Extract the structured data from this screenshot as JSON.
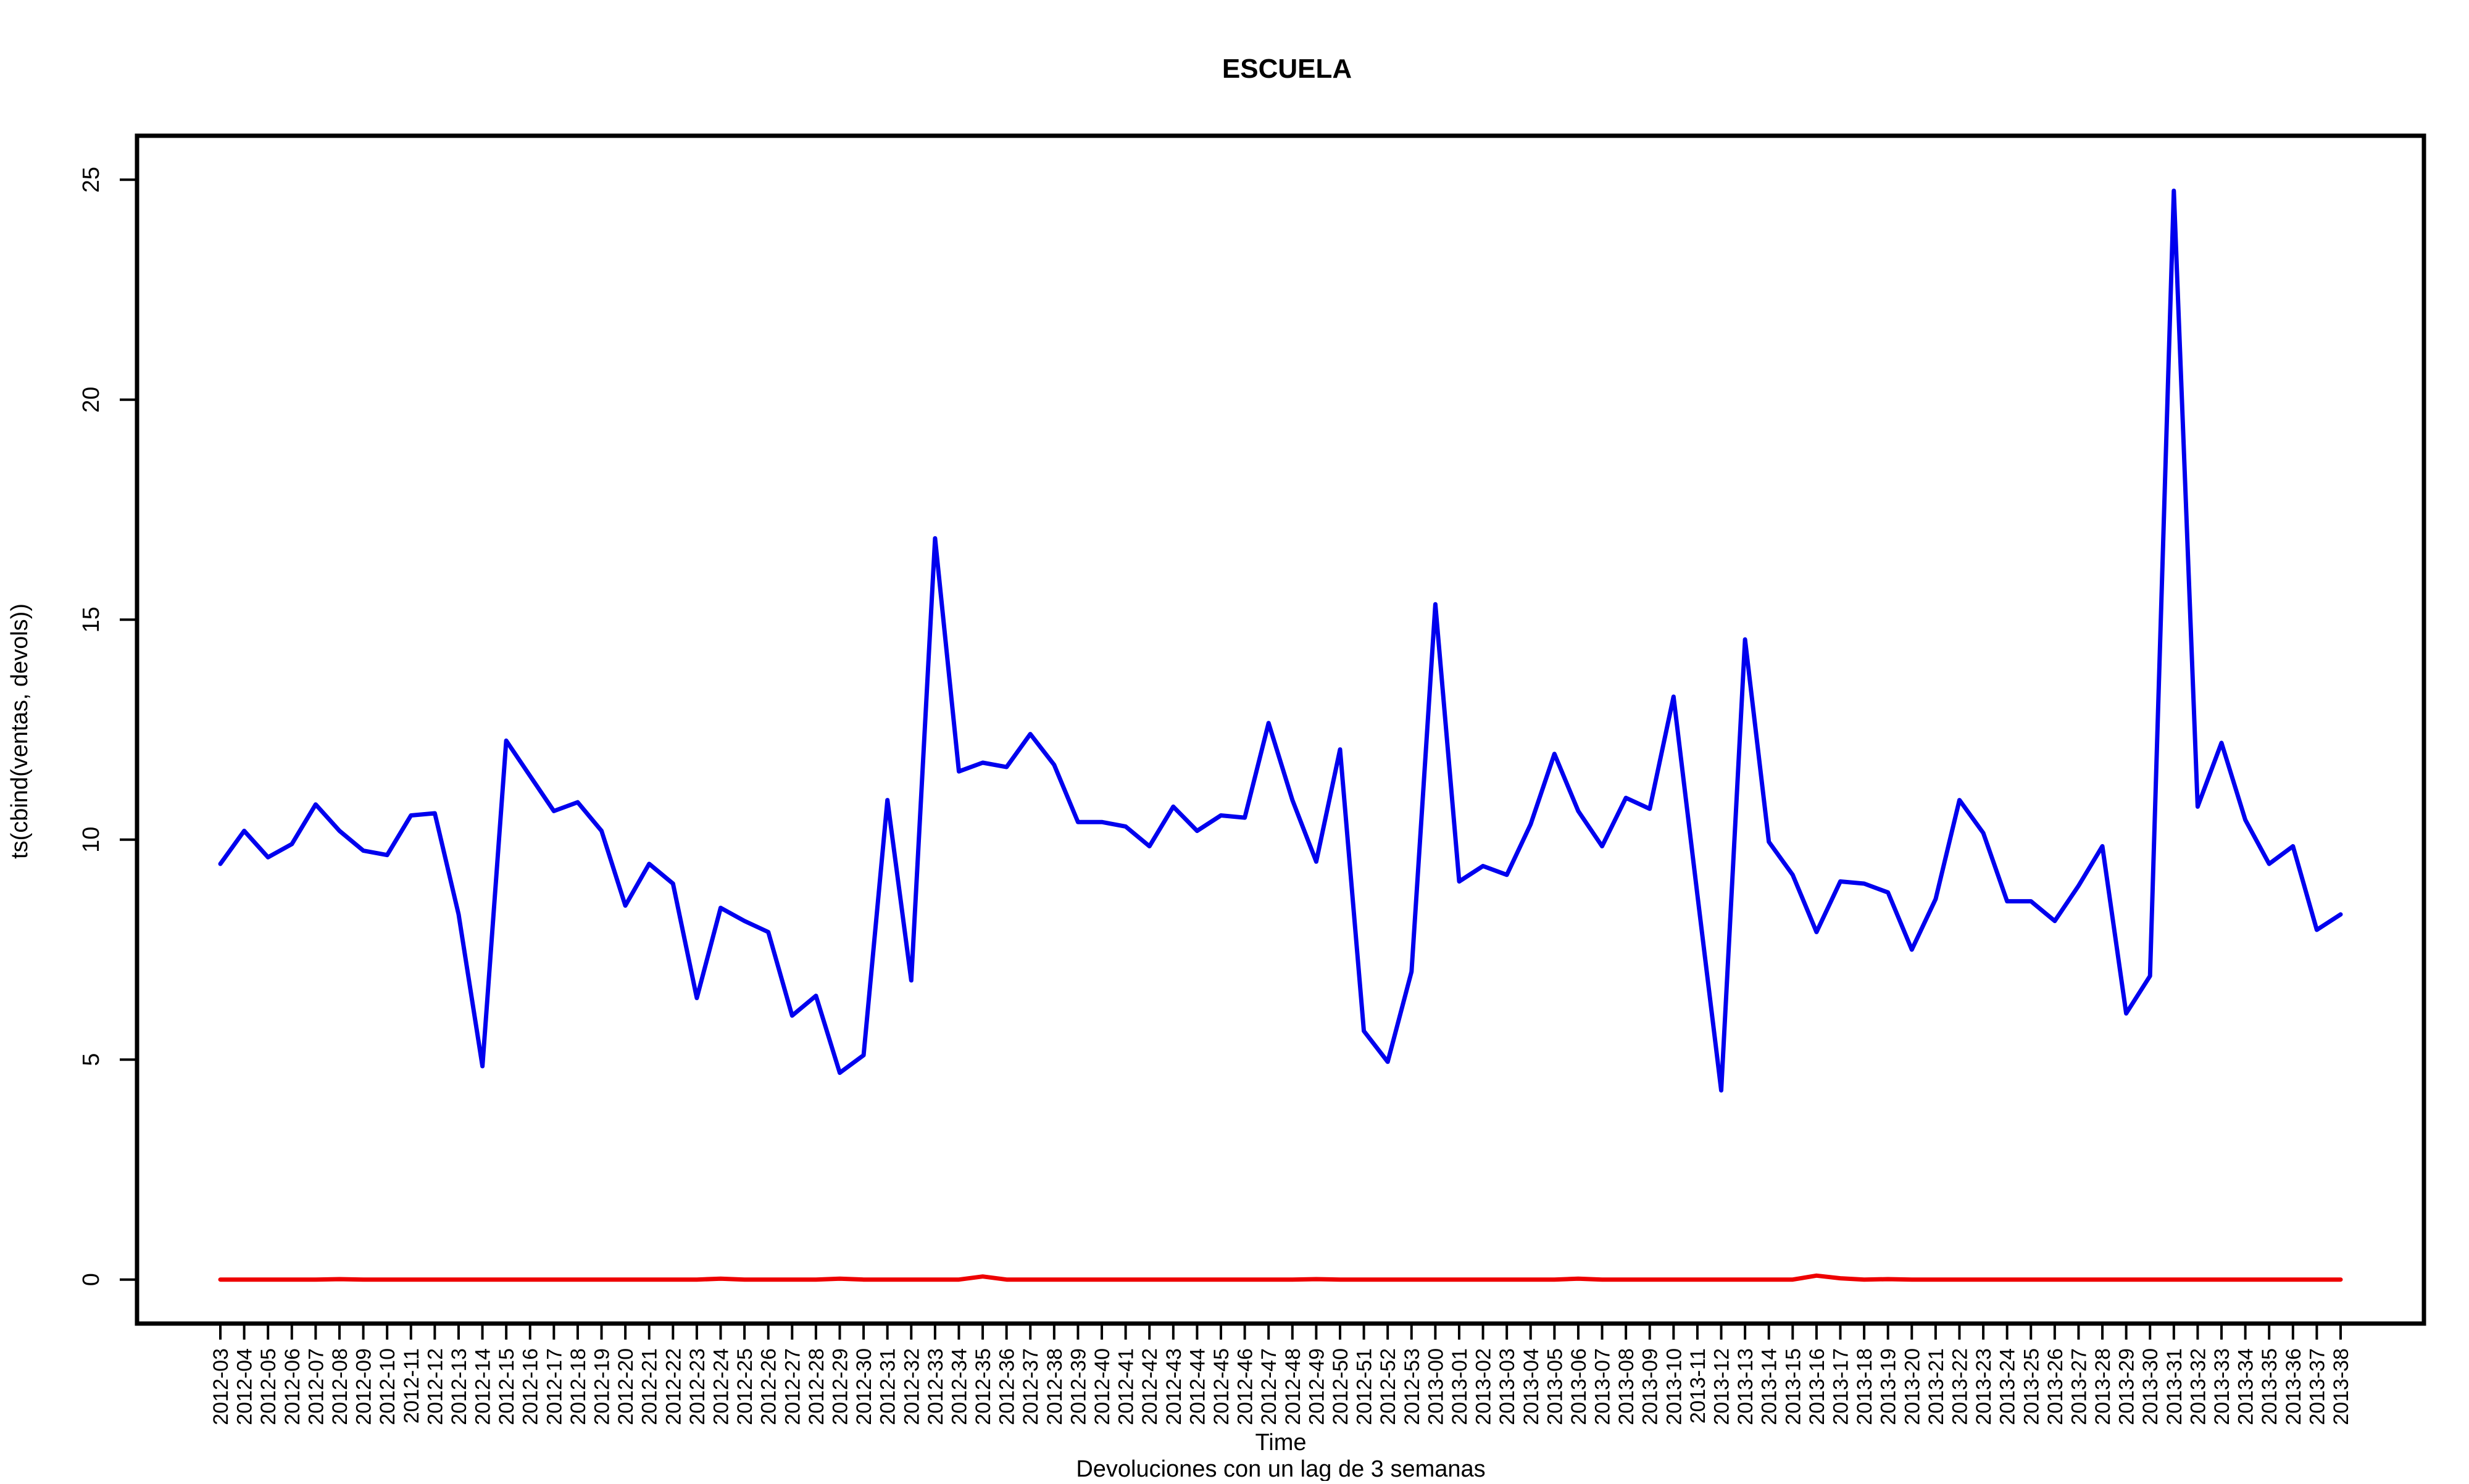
{
  "chart_data": {
    "type": "line",
    "title": "ESCUELA",
    "xlabel": "Time",
    "ylabel": "ts(cbind(ventas, devols))",
    "subtitle": "Devoluciones con un lag de 3 semanas",
    "ylim": [
      -1,
      26
    ],
    "yticks": [
      0,
      5,
      10,
      15,
      20,
      25
    ],
    "legend": "none",
    "grid": false,
    "categories": [
      "2012-03",
      "2012-04",
      "2012-05",
      "2012-06",
      "2012-07",
      "2012-08",
      "2012-09",
      "2012-10",
      "2012-11",
      "2012-12",
      "2012-13",
      "2012-14",
      "2012-15",
      "2012-16",
      "2012-17",
      "2012-18",
      "2012-19",
      "2012-20",
      "2012-21",
      "2012-22",
      "2012-23",
      "2012-24",
      "2012-25",
      "2012-26",
      "2012-27",
      "2012-28",
      "2012-29",
      "2012-30",
      "2012-31",
      "2012-32",
      "2012-33",
      "2012-34",
      "2012-35",
      "2012-36",
      "2012-37",
      "2012-38",
      "2012-39",
      "2012-40",
      "2012-41",
      "2012-42",
      "2012-43",
      "2012-44",
      "2012-45",
      "2012-46",
      "2012-47",
      "2012-48",
      "2012-49",
      "2012-50",
      "2012-51",
      "2012-52",
      "2012-53",
      "2013-00",
      "2013-01",
      "2013-02",
      "2013-03",
      "2013-04",
      "2013-05",
      "2013-06",
      "2013-07",
      "2013-08",
      "2013-09",
      "2013-10",
      "2013-11",
      "2013-12",
      "2013-13",
      "2013-14",
      "2013-15",
      "2013-16",
      "2013-17",
      "2013-18",
      "2013-19",
      "2013-20",
      "2013-21",
      "2013-22",
      "2013-23",
      "2013-24",
      "2013-25",
      "2013-26",
      "2013-27",
      "2013-28",
      "2013-29",
      "2013-30",
      "2013-31",
      "2013-32",
      "2013-33",
      "2013-34",
      "2013-35",
      "2013-36",
      "2013-37",
      "2013-38"
    ],
    "series": [
      {
        "color": "#0000ee",
        "values": [
          9.45,
          10.2,
          9.6,
          9.9,
          10.8,
          10.2,
          9.75,
          9.65,
          10.55,
          10.6,
          8.3,
          4.85,
          12.25,
          11.45,
          10.65,
          10.85,
          10.2,
          8.5,
          9.45,
          9.0,
          6.4,
          8.45,
          8.15,
          7.9,
          6.0,
          6.45,
          4.7,
          5.1,
          10.9,
          6.8,
          16.85,
          11.55,
          11.75,
          11.65,
          12.4,
          11.7,
          10.4,
          10.4,
          10.3,
          9.85,
          10.75,
          10.2,
          10.55,
          10.5,
          12.65,
          10.9,
          9.5,
          12.05,
          5.65,
          4.95,
          7.0,
          15.35,
          9.05,
          9.4,
          9.2,
          10.35,
          11.95,
          10.65,
          9.85,
          10.95,
          10.7,
          13.25,
          8.75,
          4.3,
          14.55,
          9.95,
          9.2,
          7.9,
          9.05,
          9.0,
          8.8,
          7.5,
          8.65,
          10.9,
          10.15,
          8.6,
          8.6,
          8.15,
          8.95,
          9.85,
          6.05,
          6.9,
          24.75,
          10.75,
          12.2,
          10.45,
          9.45,
          9.85,
          7.95,
          8.3
        ]
      },
      {
        "color": "#ee0000",
        "values": [
          0,
          0,
          0,
          0,
          0,
          0.01,
          0,
          0,
          0,
          0,
          0,
          0,
          0,
          0,
          0,
          0,
          0,
          0,
          0,
          0,
          0,
          0.02,
          0,
          0,
          0,
          0,
          0.02,
          0,
          0,
          0,
          0,
          0,
          0.07,
          0,
          0,
          0,
          0,
          0,
          0,
          0,
          0,
          0,
          0,
          0,
          0,
          0,
          0.01,
          0,
          0,
          0,
          0,
          0,
          0,
          0,
          0,
          0,
          0,
          0.02,
          0,
          0,
          0,
          0,
          0,
          0,
          0,
          0,
          0,
          0.09,
          0.03,
          0,
          0.01,
          0,
          0,
          0,
          0,
          0,
          0,
          0,
          0,
          0,
          0,
          0,
          0,
          0,
          0,
          0,
          0,
          0,
          0,
          0
        ]
      }
    ]
  }
}
